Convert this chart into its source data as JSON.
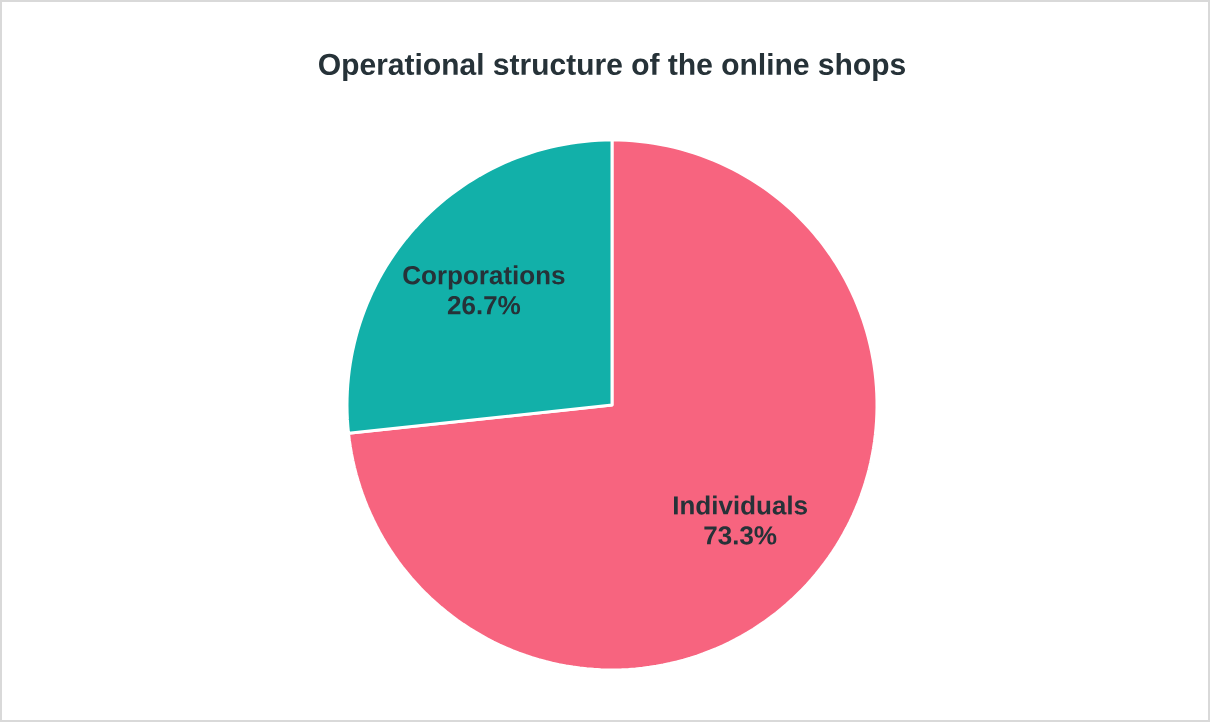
{
  "chart_data": {
    "type": "pie",
    "title": "Operational structure of the online shops",
    "categories": [
      "Individuals",
      "Corporations"
    ],
    "values": [
      73.3,
      26.7
    ],
    "colors": [
      "#f7647f",
      "#12b0a9"
    ],
    "value_labels": [
      "73.3%",
      "26.7%"
    ]
  }
}
